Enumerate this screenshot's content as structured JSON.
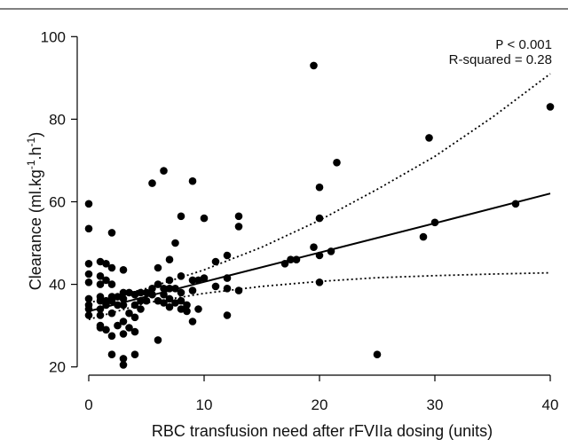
{
  "chart_data": {
    "type": "scatter",
    "title": "",
    "annotations": {
      "p_value": {
        "prefix": "P",
        "text": " < 0.001"
      },
      "r_squared": "R-squared =  0.28"
    },
    "xlabel": "RBC transfusion need after rFVIIa dosing (units)",
    "ylabel": {
      "base": "Clearance (ml.kg",
      "sup1": "-1",
      "mid": ".h",
      "sup2": "-1",
      "end": ")"
    },
    "xlim": [
      -1,
      41
    ],
    "ylim": [
      18,
      102
    ],
    "xticks": [
      0,
      10,
      20,
      30,
      40
    ],
    "yticks": [
      20,
      40,
      60,
      80,
      100
    ],
    "grid": false,
    "series": [
      {
        "kind": "points",
        "color": "#000000",
        "points": [
          [
            0,
            59.5
          ],
          [
            0,
            53.5
          ],
          [
            0,
            45
          ],
          [
            0,
            42.5
          ],
          [
            0,
            40.5
          ],
          [
            0,
            36.5
          ],
          [
            0,
            35
          ],
          [
            0,
            34
          ],
          [
            0,
            32.5
          ],
          [
            1,
            45.5
          ],
          [
            1,
            42
          ],
          [
            1,
            40
          ],
          [
            1,
            37
          ],
          [
            1,
            36
          ],
          [
            1,
            34
          ],
          [
            1,
            32.5
          ],
          [
            1,
            30
          ],
          [
            1,
            29.5
          ],
          [
            1.5,
            45
          ],
          [
            1.5,
            41
          ],
          [
            1.5,
            36
          ],
          [
            1.5,
            35
          ],
          [
            1.5,
            29
          ],
          [
            2,
            52.5
          ],
          [
            2,
            44
          ],
          [
            2,
            40
          ],
          [
            2,
            37
          ],
          [
            2,
            36
          ],
          [
            2,
            33
          ],
          [
            2,
            27.5
          ],
          [
            2,
            23
          ],
          [
            2.5,
            37
          ],
          [
            2.5,
            35
          ],
          [
            2.5,
            30
          ],
          [
            3,
            43.5
          ],
          [
            3,
            38
          ],
          [
            3,
            36.5
          ],
          [
            3,
            35
          ],
          [
            3,
            31
          ],
          [
            3,
            28
          ],
          [
            3,
            22
          ],
          [
            3,
            20.5
          ],
          [
            3.5,
            38
          ],
          [
            3.5,
            33
          ],
          [
            3.5,
            29.5
          ],
          [
            4,
            37.5
          ],
          [
            4,
            35
          ],
          [
            4,
            32
          ],
          [
            4,
            28.5
          ],
          [
            4,
            23
          ],
          [
            4.5,
            38
          ],
          [
            4.5,
            36
          ],
          [
            4.5,
            34
          ],
          [
            5,
            38
          ],
          [
            5,
            36
          ],
          [
            5.5,
            64.5
          ],
          [
            5.5,
            39
          ],
          [
            5.5,
            37.5
          ],
          [
            6,
            44
          ],
          [
            6,
            40
          ],
          [
            6,
            36
          ],
          [
            6,
            26.5
          ],
          [
            6.5,
            67.5
          ],
          [
            6.5,
            39
          ],
          [
            6.5,
            37.5
          ],
          [
            6.5,
            35.5
          ],
          [
            7,
            46
          ],
          [
            7,
            41
          ],
          [
            7,
            39
          ],
          [
            7,
            36.5
          ],
          [
            7,
            34.5
          ],
          [
            7.5,
            50
          ],
          [
            7.5,
            39
          ],
          [
            7.5,
            35.5
          ],
          [
            8,
            56.5
          ],
          [
            8,
            42
          ],
          [
            8,
            38
          ],
          [
            8,
            36
          ],
          [
            8,
            34
          ],
          [
            8.5,
            35
          ],
          [
            8.5,
            33.5
          ],
          [
            9,
            65
          ],
          [
            9,
            41
          ],
          [
            9,
            38.5
          ],
          [
            9,
            31
          ],
          [
            9.5,
            41
          ],
          [
            9.5,
            34
          ],
          [
            10,
            56
          ],
          [
            10,
            41.5
          ],
          [
            11,
            45.5
          ],
          [
            11,
            39.5
          ],
          [
            12,
            47
          ],
          [
            12,
            41.5
          ],
          [
            12,
            39
          ],
          [
            12,
            32.5
          ],
          [
            13,
            56.5
          ],
          [
            13,
            54
          ],
          [
            13,
            38.5
          ],
          [
            17,
            45
          ],
          [
            17.5,
            46
          ],
          [
            18,
            46
          ],
          [
            19.5,
            93
          ],
          [
            19.5,
            49
          ],
          [
            20,
            63.5
          ],
          [
            20,
            56
          ],
          [
            20,
            47
          ],
          [
            20,
            40.5
          ],
          [
            21,
            48
          ],
          [
            21.5,
            69.5
          ],
          [
            25,
            23
          ],
          [
            29,
            51.5
          ],
          [
            29.5,
            75.5
          ],
          [
            30,
            55
          ],
          [
            37,
            59.5
          ],
          [
            40,
            83
          ]
        ]
      },
      {
        "kind": "regression-line",
        "style": "solid",
        "color": "#000000",
        "points": [
          [
            0,
            33.5
          ],
          [
            10,
            40.6
          ],
          [
            20,
            47.7
          ],
          [
            30,
            54.8
          ],
          [
            40,
            62
          ]
        ]
      },
      {
        "kind": "confidence-bound-upper",
        "style": "dotted",
        "color": "#000000",
        "points": [
          [
            0,
            35.5
          ],
          [
            5,
            39
          ],
          [
            10,
            43.5
          ],
          [
            15,
            49
          ],
          [
            20,
            55.5
          ],
          [
            25,
            63
          ],
          [
            30,
            71
          ],
          [
            35,
            80.5
          ],
          [
            40,
            91
          ]
        ]
      },
      {
        "kind": "confidence-bound-lower",
        "style": "dotted",
        "color": "#000000",
        "points": [
          [
            0,
            31.5
          ],
          [
            5,
            35.5
          ],
          [
            10,
            37.8
          ],
          [
            15,
            39.5
          ],
          [
            20,
            40.7
          ],
          [
            25,
            41.6
          ],
          [
            30,
            42.1
          ],
          [
            35,
            42.5
          ],
          [
            40,
            42.8
          ]
        ]
      }
    ]
  }
}
